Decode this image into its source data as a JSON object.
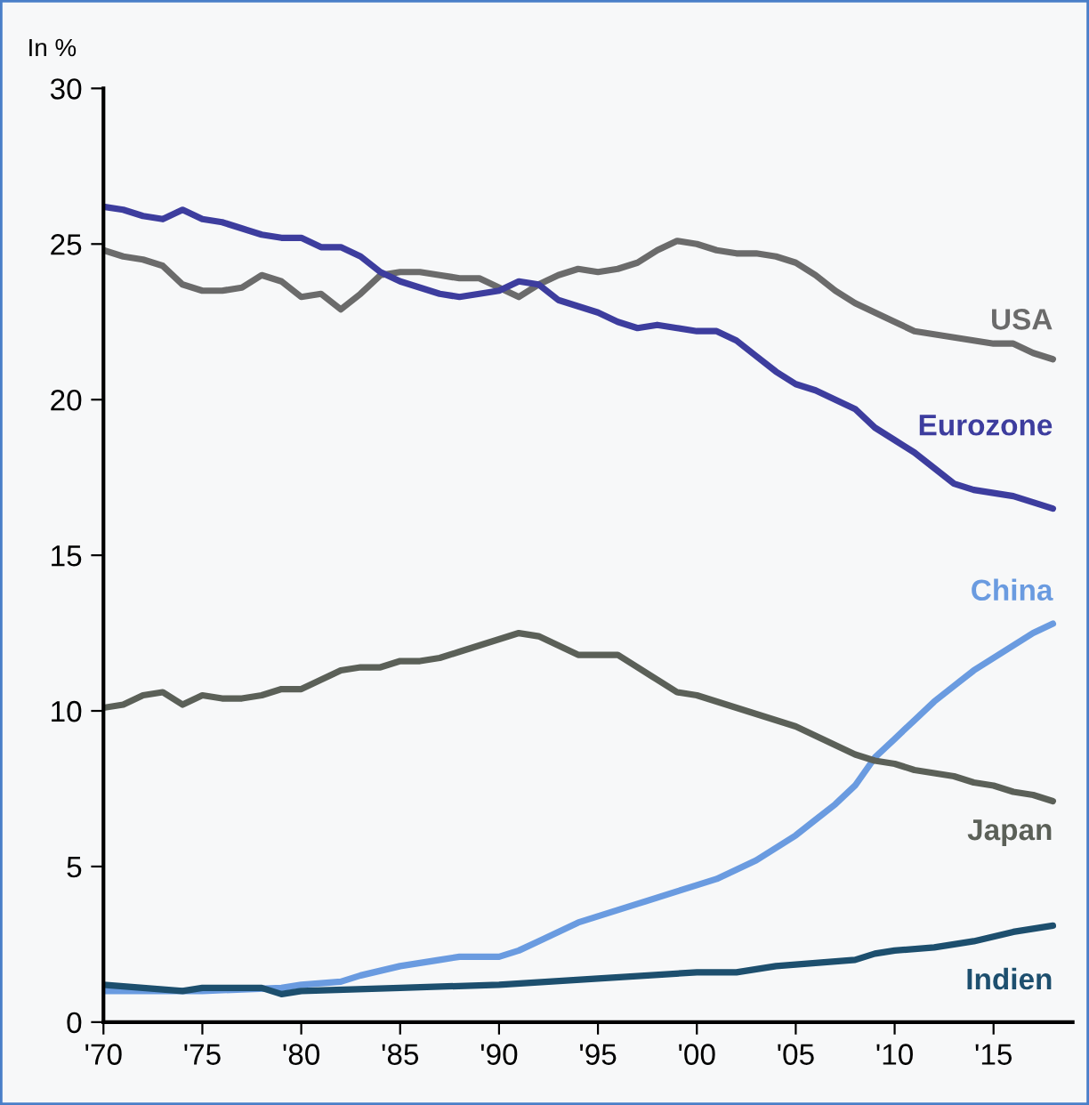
{
  "chart_data": {
    "type": "line",
    "ylabel": "In %",
    "xlim": [
      1970,
      2019
    ],
    "ylim": [
      0,
      30
    ],
    "xticks": [
      {
        "value": 1970,
        "label": "'70"
      },
      {
        "value": 1975,
        "label": "'75"
      },
      {
        "value": 1980,
        "label": "'80"
      },
      {
        "value": 1985,
        "label": "'85"
      },
      {
        "value": 1990,
        "label": "'90"
      },
      {
        "value": 1995,
        "label": "'95"
      },
      {
        "value": 2000,
        "label": "'00"
      },
      {
        "value": 2005,
        "label": "'05"
      },
      {
        "value": 2010,
        "label": "'10"
      },
      {
        "value": 2015,
        "label": "'15"
      }
    ],
    "yticks": [
      0,
      5,
      10,
      15,
      20,
      25,
      30
    ],
    "grid": false,
    "legend": false,
    "marker": "none",
    "line_style": "solid",
    "x": [
      1970,
      1971,
      1972,
      1973,
      1974,
      1975,
      1976,
      1977,
      1978,
      1979,
      1980,
      1981,
      1982,
      1983,
      1984,
      1985,
      1986,
      1987,
      1988,
      1989,
      1990,
      1991,
      1992,
      1993,
      1994,
      1995,
      1996,
      1997,
      1998,
      1999,
      2000,
      2001,
      2002,
      2003,
      2004,
      2005,
      2006,
      2007,
      2008,
      2009,
      2010,
      2011,
      2012,
      2013,
      2014,
      2015,
      2016,
      2017,
      2018
    ],
    "series": [
      {
        "name": "USA",
        "color": "#6b6b6b",
        "values": [
          24.8,
          24.6,
          24.5,
          24.3,
          23.7,
          23.5,
          23.5,
          23.6,
          24.0,
          23.8,
          23.3,
          23.4,
          22.9,
          23.4,
          24.0,
          24.1,
          24.1,
          24.0,
          23.9,
          23.9,
          23.6,
          23.3,
          23.7,
          24.0,
          24.2,
          24.1,
          24.2,
          24.4,
          24.8,
          25.1,
          25.0,
          24.8,
          24.7,
          24.7,
          24.6,
          24.4,
          24.0,
          23.5,
          23.1,
          22.8,
          22.5,
          22.2,
          22.1,
          22.0,
          21.9,
          21.8,
          21.8,
          21.5,
          21.3
        ]
      },
      {
        "name": "Eurozone",
        "color": "#3d3d9e",
        "values": [
          26.2,
          26.1,
          25.9,
          25.8,
          26.1,
          25.8,
          25.7,
          25.5,
          25.3,
          25.2,
          25.2,
          24.9,
          24.9,
          24.6,
          24.1,
          23.8,
          23.6,
          23.4,
          23.3,
          23.4,
          23.5,
          23.8,
          23.7,
          23.2,
          23.0,
          22.8,
          22.5,
          22.3,
          22.4,
          22.3,
          22.2,
          22.2,
          21.9,
          21.4,
          20.9,
          20.5,
          20.3,
          20.0,
          19.7,
          19.1,
          18.7,
          18.3,
          17.8,
          17.3,
          17.1,
          17.0,
          16.9,
          16.7,
          16.5
        ]
      },
      {
        "name": "China",
        "color": "#6a9be0",
        "x": [
          1970,
          1975,
          1979,
          1980,
          1982,
          1983,
          1985,
          1987,
          1988,
          1990,
          1991,
          1992,
          1993,
          1994,
          1995,
          1997,
          1999,
          2000,
          2001,
          2002,
          2003,
          2004,
          2005,
          2006,
          2007,
          2008,
          2009,
          2010,
          2011,
          2012,
          2013,
          2014,
          2015,
          2016,
          2017,
          2018
        ],
        "values": [
          1.0,
          1.0,
          1.1,
          1.2,
          1.3,
          1.5,
          1.8,
          2.0,
          2.1,
          2.1,
          2.3,
          2.6,
          2.9,
          3.2,
          3.4,
          3.8,
          4.2,
          4.4,
          4.6,
          4.9,
          5.2,
          5.6,
          6.0,
          6.5,
          7.0,
          7.6,
          8.5,
          9.1,
          9.7,
          10.3,
          10.8,
          11.3,
          11.7,
          12.1,
          12.5,
          12.8
        ]
      },
      {
        "name": "Japan",
        "color": "#5b6058",
        "values": [
          10.1,
          10.2,
          10.5,
          10.6,
          10.2,
          10.5,
          10.4,
          10.4,
          10.5,
          10.7,
          10.7,
          11.0,
          11.3,
          11.4,
          11.4,
          11.6,
          11.6,
          11.7,
          11.9,
          12.1,
          12.3,
          12.5,
          12.4,
          12.1,
          11.8,
          11.8,
          11.8,
          11.4,
          11.0,
          10.6,
          10.5,
          10.3,
          10.1,
          9.9,
          9.7,
          9.5,
          9.2,
          8.9,
          8.6,
          8.4,
          8.3,
          8.1,
          8.0,
          7.9,
          7.7,
          7.6,
          7.4,
          7.3,
          7.1
        ]
      },
      {
        "name": "Indien",
        "color": "#1d4f6e",
        "x": [
          1970,
          1972,
          1974,
          1975,
          1978,
          1979,
          1980,
          1985,
          1990,
          1995,
          2000,
          2002,
          2004,
          2006,
          2008,
          2009,
          2010,
          2012,
          2014,
          2016,
          2018
        ],
        "values": [
          1.2,
          1.1,
          1.0,
          1.1,
          1.1,
          0.9,
          1.0,
          1.1,
          1.2,
          1.4,
          1.6,
          1.6,
          1.8,
          1.9,
          2.0,
          2.2,
          2.3,
          2.4,
          2.6,
          2.9,
          3.1
        ]
      }
    ]
  }
}
